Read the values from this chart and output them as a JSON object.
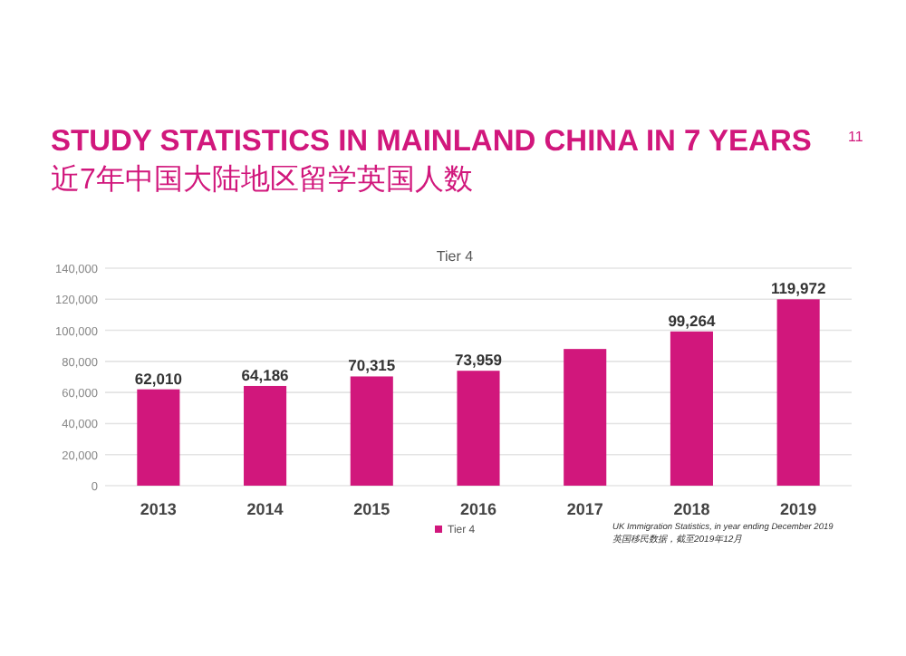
{
  "chart_data": {
    "type": "bar",
    "title": "STUDY STATISTICS IN MAINLAND CHINA IN 7 YEARS",
    "subtitle": "近7年中国大陆地区留学英国人数",
    "annotations": [
      "11",
      "Tier 4",
      "UK Immigration Statistics, in year ending December 2019",
      "英国移民数据，截至2019年12月"
    ],
    "categories": [
      "2013",
      "2014",
      "2015",
      "2016",
      "2017",
      "2018",
      "2019"
    ],
    "series": [
      {
        "name": "Tier 4",
        "color": "#d1177c",
        "values": [
          62010,
          64186,
          70315,
          73959,
          88000,
          99264,
          119972
        ],
        "value_labels": [
          "62,010",
          "64,186",
          "70,315",
          "73,959",
          null,
          "99,264",
          "119,972"
        ]
      }
    ],
    "ylim": [
      0,
      140000
    ],
    "yticks": [
      {
        "value": 0,
        "label": "0"
      },
      {
        "value": 20000,
        "label": "20,000"
      },
      {
        "value": 40000,
        "label": "40,000"
      },
      {
        "value": 60000,
        "label": "60,000"
      },
      {
        "value": 80000,
        "label": "80,000"
      },
      {
        "value": 100000,
        "label": "100,000"
      },
      {
        "value": 120000,
        "label": "120,000"
      },
      {
        "value": 140000,
        "label": "140,000"
      }
    ],
    "grid": "y",
    "legend": "bottom"
  }
}
